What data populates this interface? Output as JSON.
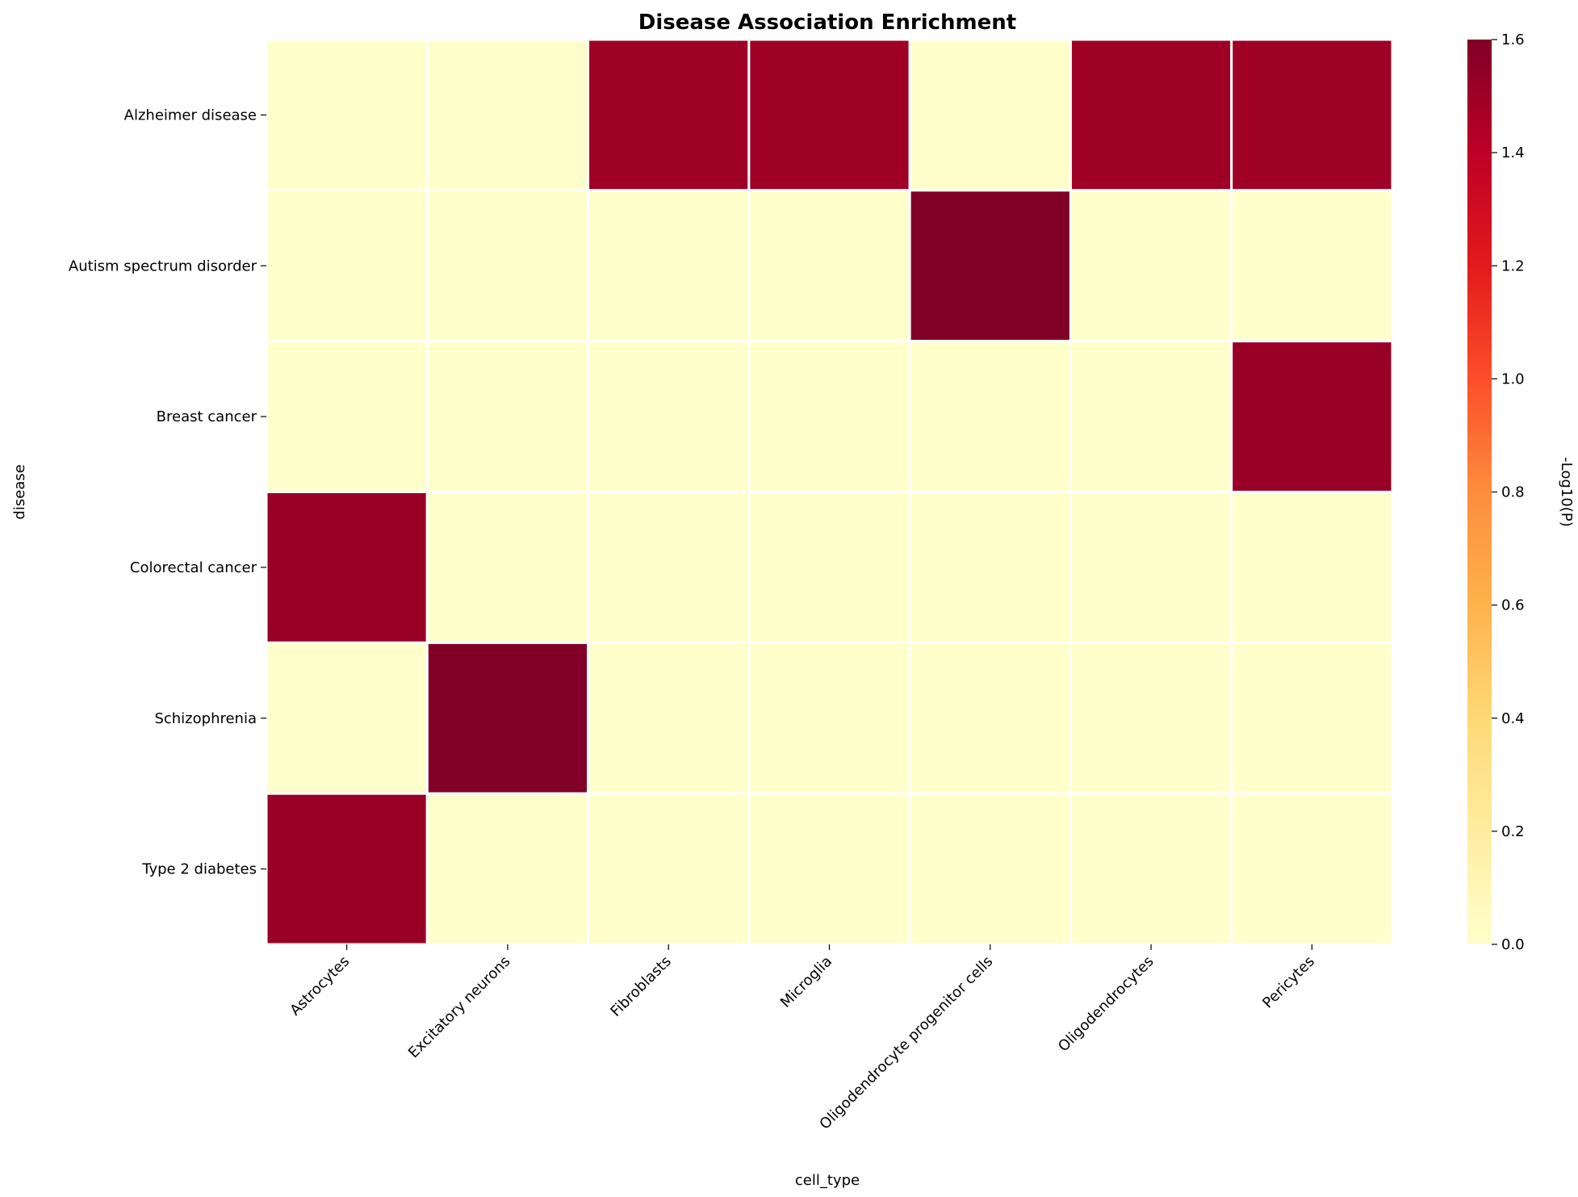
{
  "chart_data": {
    "type": "heatmap",
    "title": "Disease Association Enrichment",
    "xlabel": "cell_type",
    "ylabel": "disease",
    "x_categories": [
      "Astrocytes",
      "Excitatory neurons",
      "Fibroblasts",
      "Microglia",
      "Oligodendrocyte progenitor cells",
      "Oligodendrocytes",
      "Pericytes"
    ],
    "y_categories": [
      "Alzheimer disease",
      "Autism spectrum disorder",
      "Breast cancer",
      "Colorectal cancer",
      "Schizophrenia",
      "Type 2 diabetes"
    ],
    "values": [
      [
        0,
        0,
        1.5,
        1.5,
        0,
        1.5,
        1.5
      ],
      [
        0,
        0,
        0,
        0,
        1.6,
        0,
        0
      ],
      [
        0,
        0,
        0,
        0,
        0,
        0,
        1.52
      ],
      [
        1.52,
        0,
        0,
        0,
        0,
        0,
        0
      ],
      [
        0,
        1.6,
        0,
        0,
        0,
        0,
        0
      ],
      [
        1.52,
        0,
        0,
        0,
        0,
        0,
        0
      ]
    ],
    "colorbar": {
      "label": "-Log10(P)",
      "range": [
        0,
        1.6
      ],
      "ticks": [
        "0.0",
        "0.2",
        "0.4",
        "0.6",
        "0.8",
        "1.0",
        "1.2",
        "1.4",
        "1.6"
      ],
      "colormap": "YlOrRd",
      "stops": [
        "#ffffcc",
        "#ffeda0",
        "#fed976",
        "#feb24c",
        "#fd8d3c",
        "#fc4e2a",
        "#e31a1c",
        "#bd0026",
        "#800026"
      ]
    },
    "grid": false
  }
}
